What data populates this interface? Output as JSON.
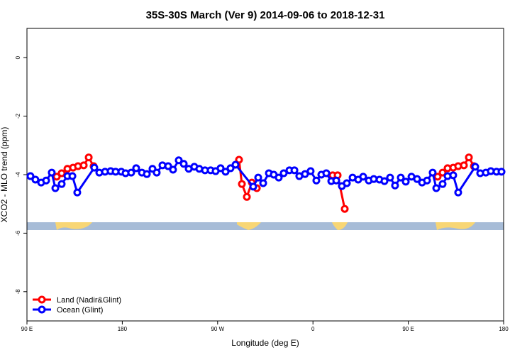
{
  "chart_data": {
    "type": "line",
    "title": "35S-30S March (Ver 9)   2014-09-06 to 2018-12-31",
    "x_label": "Longitude (deg E)",
    "y_label": "XCO2 - MLO trend (ppm)",
    "xlim": [
      90,
      540
    ],
    "xticks": [
      {
        "value": 90,
        "label": "90 E"
      },
      {
        "value": 180,
        "label": "180"
      },
      {
        "value": 270,
        "label": "90 W"
      },
      {
        "value": 360,
        "label": "0"
      },
      {
        "value": 450,
        "label": "90 E"
      },
      {
        "value": 540,
        "label": "180"
      }
    ],
    "ylim": [
      -9,
      1
    ],
    "yticks": [
      0,
      -2,
      -4,
      -6,
      -8
    ],
    "legend": "bottom-left",
    "series": [
      {
        "name": "Land (Nadir&Glint)",
        "color": "#ff0000",
        "x": [
          118.1,
          122.8,
          128.2,
          133.5,
          138.2,
          143.6,
          148.3,
          152.9,
          null,
          290.2,
          292.9,
          297.6,
          302.3,
          307.0,
          null,
          378.6,
          383.3,
          390.0,
          null,
          477.7,
          482.4,
          487.1,
          492.4,
          497.1,
          502.5,
          507.2,
          511.9
        ],
        "values": [
          -4.07,
          -3.95,
          -3.8,
          -3.76,
          -3.71,
          -3.68,
          -3.41,
          -3.71,
          null,
          -3.49,
          -4.32,
          -4.76,
          -4.27,
          -4.46,
          null,
          -4.02,
          -4.02,
          -5.17,
          null,
          -4.07,
          -3.93,
          -3.78,
          -3.76,
          -3.71,
          -3.68,
          -3.41,
          -3.71
        ]
      },
      {
        "name": "Ocean (Glint)",
        "color": "#0000ff",
        "x": [
          93.3,
          98.0,
          103.4,
          108.1,
          113.4,
          116.8,
          122.8,
          128.2,
          132.9,
          137.5,
          153.6,
          158.3,
          163.7,
          169.0,
          173.7,
          179.1,
          183.1,
          188.4,
          193.1,
          198.5,
          203.2,
          208.5,
          212.5,
          217.9,
          223.3,
          227.9,
          233.3,
          238.0,
          242.7,
          248.0,
          252.7,
          258.1,
          263.4,
          268.1,
          272.8,
          277.5,
          282.2,
          286.9,
          303.6,
          308.3,
          313.0,
          318.4,
          323.0,
          327.7,
          332.4,
          337.8,
          342.5,
          347.1,
          352.5,
          357.8,
          363.2,
          367.9,
          372.6,
          377.3,
          382.0,
          387.3,
          392.0,
          397.4,
          402.7,
          407.4,
          412.7,
          417.4,
          422.8,
          427.5,
          432.8,
          437.5,
          442.9,
          447.6,
          453.0,
          458.3,
          463.0,
          467.7,
          473.0,
          476.4,
          482.4,
          487.1,
          492.4,
          497.1,
          513.2,
          517.9,
          523.2,
          527.9,
          533.3,
          538.0
        ],
        "values": [
          -4.05,
          -4.17,
          -4.27,
          -4.2,
          -3.93,
          -4.46,
          -4.32,
          -4.05,
          -4.05,
          -4.61,
          -3.76,
          -3.93,
          -3.9,
          -3.88,
          -3.9,
          -3.9,
          -3.95,
          -3.93,
          -3.78,
          -3.93,
          -3.98,
          -3.8,
          -3.93,
          -3.68,
          -3.71,
          -3.83,
          -3.51,
          -3.63,
          -3.8,
          -3.73,
          -3.8,
          -3.85,
          -3.85,
          -3.88,
          -3.78,
          -3.9,
          -3.78,
          -3.66,
          -4.41,
          -4.1,
          -4.29,
          -3.95,
          -4.0,
          -4.1,
          -3.95,
          -3.85,
          -3.85,
          -4.05,
          -3.98,
          -3.88,
          -4.2,
          -4.0,
          -3.95,
          -4.22,
          -4.2,
          -4.39,
          -4.29,
          -4.1,
          -4.17,
          -4.07,
          -4.2,
          -4.15,
          -4.17,
          -4.22,
          -4.1,
          -4.37,
          -4.1,
          -4.24,
          -4.07,
          -4.15,
          -4.27,
          -4.2,
          -3.93,
          -4.46,
          -4.32,
          -4.05,
          -4.02,
          -4.61,
          -3.73,
          -3.95,
          -3.93,
          -3.88,
          -3.9,
          -3.9
        ]
      }
    ]
  }
}
